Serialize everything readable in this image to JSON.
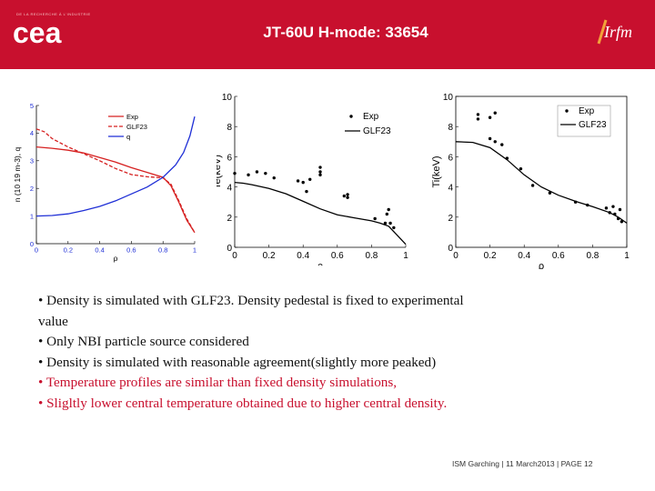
{
  "header": {
    "tagline": "DE LA RECHERCHE À L'INDUSTRIE",
    "title": "JT-60U H-mode: 33654",
    "brand_color": "#c8102e",
    "logo_left": "cea",
    "logo_right": "Irfm"
  },
  "chart_data": [
    {
      "type": "line",
      "xlabel": "ρ",
      "ylabel": "n (10 19 m-3), q",
      "xlim": [
        0,
        1
      ],
      "ylim": [
        0,
        5
      ],
      "xticks": [
        "0",
        "0.2",
        "0.4",
        "0.6",
        "0.8",
        "1"
      ],
      "yticks": [
        "0",
        "1",
        "2",
        "3",
        "4",
        "5"
      ],
      "legend": [
        "Exp",
        "GLF23",
        "q"
      ],
      "legend_position": "top-right",
      "series": [
        {
          "name": "Exp",
          "color": "#d62020",
          "style": "solid",
          "x": [
            0,
            0.1,
            0.2,
            0.3,
            0.4,
            0.5,
            0.6,
            0.7,
            0.8,
            0.85,
            0.9,
            0.95,
            1.0
          ],
          "y": [
            3.5,
            3.45,
            3.38,
            3.28,
            3.12,
            2.95,
            2.75,
            2.58,
            2.4,
            2.1,
            1.5,
            0.85,
            0.4
          ]
        },
        {
          "name": "GLF23",
          "color": "#d62020",
          "style": "dashed",
          "x": [
            0,
            0.05,
            0.1,
            0.2,
            0.3,
            0.4,
            0.5,
            0.6,
            0.7,
            0.8,
            0.85,
            0.9,
            0.95,
            1.0
          ],
          "y": [
            4.15,
            4.05,
            3.8,
            3.5,
            3.25,
            3.0,
            2.72,
            2.5,
            2.42,
            2.38,
            2.15,
            1.55,
            0.9,
            0.4
          ]
        },
        {
          "name": "q",
          "color": "#1f2fd6",
          "style": "solid",
          "x": [
            0,
            0.1,
            0.2,
            0.3,
            0.4,
            0.5,
            0.6,
            0.7,
            0.8,
            0.88,
            0.93,
            0.97,
            1.0
          ],
          "y": [
            1.0,
            1.02,
            1.08,
            1.2,
            1.35,
            1.55,
            1.8,
            2.05,
            2.4,
            2.85,
            3.3,
            3.9,
            4.6
          ]
        }
      ]
    },
    {
      "type": "line",
      "xlabel": "ρ",
      "ylabel": "Te(keV)",
      "xlim": [
        0,
        1
      ],
      "ylim": [
        0,
        10
      ],
      "xticks": [
        "0",
        "0.2",
        "0.4",
        "0.6",
        "0.8",
        "1"
      ],
      "yticks": [
        "0",
        "2",
        "4",
        "6",
        "8",
        "10"
      ],
      "legend": [
        "Exp",
        "GLF23"
      ],
      "legend_position": "top-right",
      "series": [
        {
          "name": "Exp",
          "style": "points",
          "x": [
            0,
            0.08,
            0.13,
            0.18,
            0.23,
            0.37,
            0.4,
            0.42,
            0.44,
            0.5,
            0.5,
            0.5,
            0.64,
            0.66,
            0.66,
            0.82,
            0.88,
            0.89,
            0.9,
            0.91,
            0.93
          ],
          "y": [
            4.9,
            4.8,
            5.0,
            4.9,
            4.6,
            4.4,
            4.3,
            3.7,
            4.5,
            5.0,
            5.3,
            4.8,
            3.4,
            3.3,
            3.5,
            1.9,
            1.6,
            2.2,
            2.5,
            1.6,
            1.3
          ]
        },
        {
          "name": "GLF23",
          "style": "solid",
          "x": [
            0,
            0.05,
            0.1,
            0.2,
            0.3,
            0.4,
            0.5,
            0.6,
            0.7,
            0.8,
            0.85,
            0.9,
            0.95,
            1.0
          ],
          "y": [
            4.3,
            4.25,
            4.15,
            3.9,
            3.55,
            3.05,
            2.55,
            2.15,
            1.95,
            1.75,
            1.6,
            1.4,
            0.8,
            0.2
          ]
        }
      ]
    },
    {
      "type": "line",
      "xlabel": "ρ",
      "ylabel": "Ti(keV)",
      "xlim": [
        0,
        1
      ],
      "ylim": [
        0,
        10
      ],
      "xticks": [
        "0",
        "0.2",
        "0.4",
        "0.6",
        "0.8",
        "1"
      ],
      "yticks": [
        "0",
        "2",
        "4",
        "6",
        "8",
        "10"
      ],
      "legend": [
        "Exp",
        "GLF23"
      ],
      "legend_position": "top-right",
      "series": [
        {
          "name": "Exp",
          "style": "points",
          "x": [
            0.13,
            0.13,
            0.2,
            0.2,
            0.23,
            0.23,
            0.27,
            0.3,
            0.38,
            0.45,
            0.55,
            0.7,
            0.77,
            0.88,
            0.9,
            0.92,
            0.93,
            0.95,
            0.96,
            0.97
          ],
          "y": [
            8.8,
            8.5,
            8.6,
            7.2,
            8.9,
            7.0,
            6.8,
            5.9,
            5.2,
            4.1,
            3.6,
            3.0,
            2.8,
            2.6,
            2.3,
            2.7,
            2.2,
            1.9,
            2.5,
            1.7
          ]
        },
        {
          "name": "GLF23",
          "style": "solid",
          "x": [
            0,
            0.1,
            0.2,
            0.3,
            0.4,
            0.5,
            0.6,
            0.7,
            0.8,
            0.9,
            0.95,
            1.0
          ],
          "y": [
            7.0,
            6.95,
            6.6,
            5.8,
            4.8,
            4.0,
            3.45,
            3.05,
            2.7,
            2.3,
            2.0,
            1.6
          ]
        }
      ]
    }
  ],
  "bullets": [
    {
      "text": "• Density is simulated with GLF23. Density pedestal is fixed to experimental",
      "color": "#111111"
    },
    {
      "text": "value",
      "color": "#111111"
    },
    {
      "text": "• Only NBI particle source considered",
      "color": "#111111"
    },
    {
      "text": "• Density is simulated with reasonable agreement(slightly more peaked)",
      "color": "#111111"
    },
    {
      "text": "• Temperature profiles are similar than fixed density simulations,",
      "color": "#c8102e"
    },
    {
      "text": "• Sligltly lower central temperature obtained due to higher central density.",
      "color": "#c8102e"
    }
  ],
  "footer": {
    "venue": "ISM Garching",
    "date": "11 March2013",
    "page": "PAGE 12"
  }
}
